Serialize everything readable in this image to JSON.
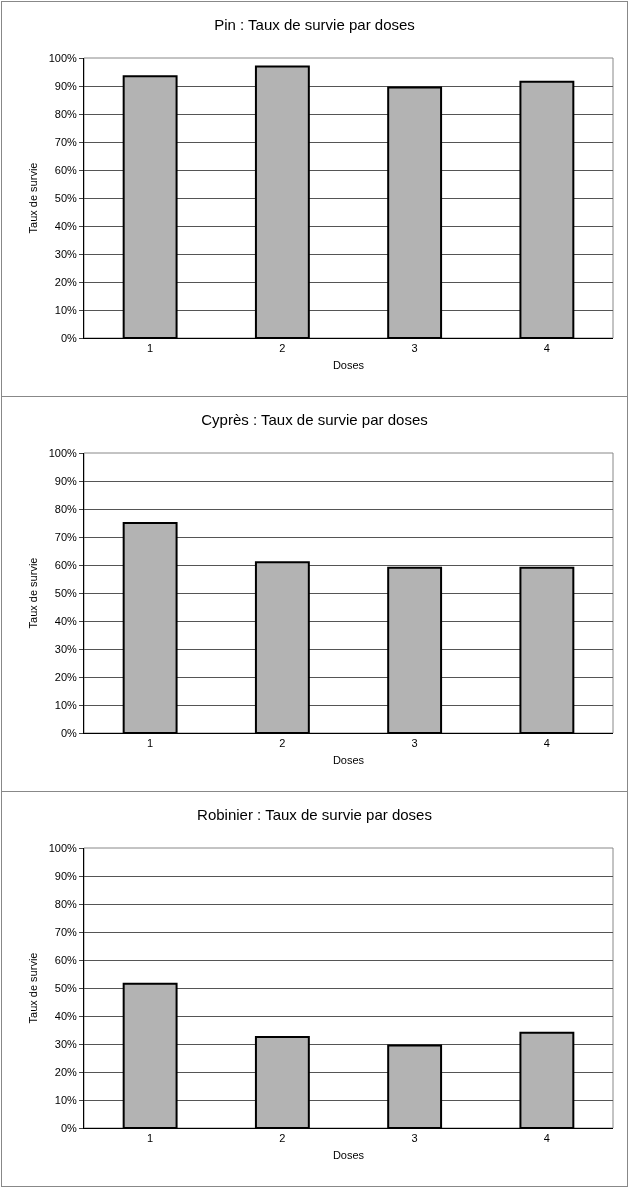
{
  "chart_data": [
    {
      "type": "bar",
      "title": "Pin : Taux de survie par doses",
      "xlabel": "Doses",
      "ylabel": "Taux de survie",
      "categories": [
        "1",
        "2",
        "3",
        "4"
      ],
      "values": [
        93.5,
        97,
        89.5,
        91.5
      ],
      "color": "#b3b3b3",
      "ylim": [
        0,
        100
      ],
      "yticks": [
        {
          "value": 0,
          "label": "0%"
        },
        {
          "value": 10,
          "label": "10%"
        },
        {
          "value": 20,
          "label": "20%"
        },
        {
          "value": 30,
          "label": "30%"
        },
        {
          "value": 40,
          "label": "40%"
        },
        {
          "value": 50,
          "label": "50%"
        },
        {
          "value": 60,
          "label": "60%"
        },
        {
          "value": 70,
          "label": "70%"
        },
        {
          "value": 80,
          "label": "80%"
        },
        {
          "value": 90,
          "label": "90%"
        },
        {
          "value": 100,
          "label": "100%"
        }
      ],
      "grid": "y"
    },
    {
      "type": "bar",
      "title": "Cyprès : Taux de survie par doses",
      "xlabel": "Doses",
      "ylabel": "Taux de survie",
      "categories": [
        "1",
        "2",
        "3",
        "4"
      ],
      "values": [
        75,
        61,
        59,
        59
      ],
      "color": "#b3b3b3",
      "ylim": [
        0,
        100
      ],
      "yticks": [
        {
          "value": 0,
          "label": "0%"
        },
        {
          "value": 10,
          "label": "10%"
        },
        {
          "value": 20,
          "label": "20%"
        },
        {
          "value": 30,
          "label": "30%"
        },
        {
          "value": 40,
          "label": "40%"
        },
        {
          "value": 50,
          "label": "50%"
        },
        {
          "value": 60,
          "label": "60%"
        },
        {
          "value": 70,
          "label": "70%"
        },
        {
          "value": 80,
          "label": "80%"
        },
        {
          "value": 90,
          "label": "90%"
        },
        {
          "value": 100,
          "label": "100%"
        }
      ],
      "grid": "y"
    },
    {
      "type": "bar",
      "title": "Robinier : Taux de survie par doses",
      "xlabel": "Doses",
      "ylabel": "Taux de survie",
      "categories": [
        "1",
        "2",
        "3",
        "4"
      ],
      "values": [
        51.5,
        32.5,
        29.5,
        34
      ],
      "color": "#b3b3b3",
      "ylim": [
        0,
        100
      ],
      "yticks": [
        {
          "value": 0,
          "label": "0%"
        },
        {
          "value": 10,
          "label": "10%"
        },
        {
          "value": 20,
          "label": "20%"
        },
        {
          "value": 30,
          "label": "30%"
        },
        {
          "value": 40,
          "label": "40%"
        },
        {
          "value": 50,
          "label": "50%"
        },
        {
          "value": 60,
          "label": "60%"
        },
        {
          "value": 70,
          "label": "70%"
        },
        {
          "value": 80,
          "label": "80%"
        },
        {
          "value": 90,
          "label": "90%"
        },
        {
          "value": 100,
          "label": "100%"
        }
      ],
      "grid": "y"
    }
  ]
}
